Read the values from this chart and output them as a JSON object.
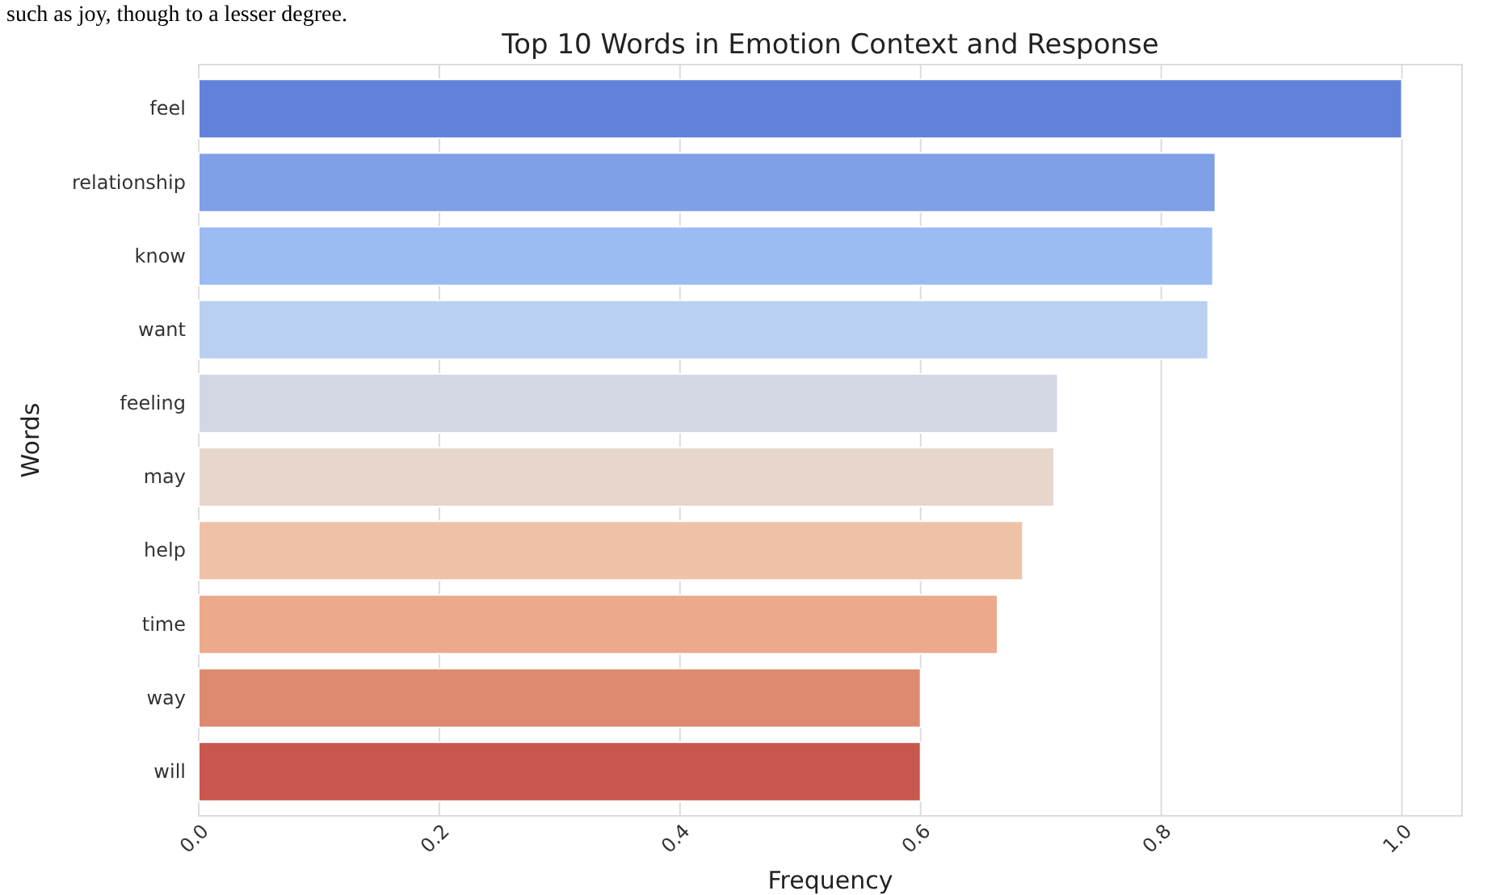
{
  "chart_data": {
    "type": "bar",
    "orientation": "horizontal",
    "title": "Top 10 Words in Emotion Context and Response",
    "xlabel": "Frequency",
    "ylabel": "Words",
    "categories": [
      "feel",
      "relationship",
      "know",
      "want",
      "feeling",
      "may",
      "help",
      "time",
      "way",
      "will"
    ],
    "values": [
      1.0,
      0.845,
      0.843,
      0.839,
      0.714,
      0.711,
      0.685,
      0.664,
      0.6,
      0.6
    ],
    "colors": [
      "#6282d9",
      "#7f9fe6",
      "#9bbbf2",
      "#bad0f0",
      "#d3d7e3",
      "#e6d6cc",
      "#efc2a7",
      "#eca98c",
      "#de8a70",
      "#c9574f"
    ],
    "xlim": [
      0,
      1.05
    ],
    "xticks": [
      {
        "value": 0,
        "label": "0.0"
      },
      0.2,
      0.4,
      0.6,
      0.8,
      {
        "value": 1,
        "label": "1.0"
      }
    ],
    "grid": "x",
    "annotations": [
      "such as joy, though to a lesser degree."
    ]
  }
}
